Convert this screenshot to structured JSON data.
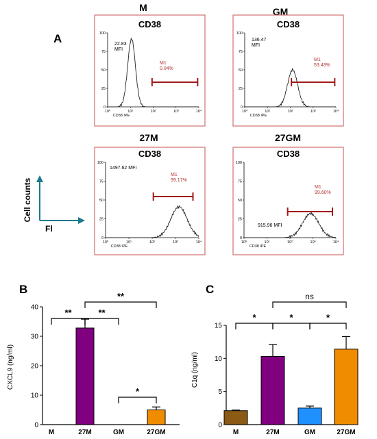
{
  "panel_letters": {
    "a": "A",
    "b": "B",
    "c": "C"
  },
  "flow_axis_key": {
    "y_label": "Cell counts",
    "x_label": "Fl",
    "color": "#1a7a8c"
  },
  "colors": {
    "frame": "#d07070",
    "marker": "#a01818",
    "marker_text": "#b03030",
    "curve": "#222222"
  },
  "chart_data": [
    {
      "type": "histogram",
      "group_label": "M",
      "title": "CD38",
      "mfi_value": "22.83",
      "mfi_unit": "MFI",
      "gate_label": "M1",
      "gate_percent": "0.04%",
      "y_ticks": [
        "0",
        "25",
        "50",
        "75",
        "100"
      ],
      "x_ticks": [
        "10⁰",
        "10¹",
        "10²",
        "10³",
        "10⁴"
      ],
      "x_label": "CD38 IPE",
      "ylim": [
        0,
        100
      ],
      "xlim_log10": [
        0,
        4
      ],
      "peak": {
        "center_log10": 1.05,
        "height": 92,
        "width": 0.17
      },
      "gate_range_log10": [
        1.95,
        3.95
      ]
    },
    {
      "type": "histogram",
      "group_label": "GM",
      "title": "CD38",
      "mfi_value": "136.47",
      "mfi_unit": "MFI",
      "gate_label": "M1",
      "gate_percent": "53.43%",
      "y_ticks": [
        "0",
        "25",
        "50",
        "75",
        "100"
      ],
      "x_ticks": [
        "10⁰",
        "10¹",
        "10²",
        "10³",
        "10⁴"
      ],
      "x_label": "CD38 IPE",
      "ylim": [
        0,
        100
      ],
      "xlim_log10": [
        0,
        4
      ],
      "peak": {
        "center_log10": 2.1,
        "height": 50,
        "width": 0.22
      },
      "gate_range_log10": [
        2.05,
        3.95
      ]
    },
    {
      "type": "histogram",
      "group_label": "27M",
      "title": "CD38",
      "mfi_value": "1497.62",
      "mfi_unit": "MFI",
      "gate_label": "M1",
      "gate_percent": "99.17%",
      "y_ticks": [
        "0",
        "25",
        "50",
        "75",
        "100"
      ],
      "x_ticks": [
        "10⁰",
        "10¹",
        "10²",
        "10³",
        "10⁴"
      ],
      "x_label": "CD38 IPE",
      "ylim": [
        0,
        100
      ],
      "xlim_log10": [
        0,
        4
      ],
      "peak": {
        "center_log10": 3.15,
        "height": 41,
        "width": 0.35
      },
      "gate_range_log10": [
        2.05,
        3.75
      ]
    },
    {
      "type": "histogram",
      "group_label": "27GM",
      "title": "CD38",
      "mfi_value": "915.96",
      "mfi_unit": "MFI",
      "gate_label": "M1",
      "gate_percent": "99.60%",
      "y_ticks": [
        "0",
        "25",
        "50",
        "75",
        "100"
      ],
      "x_ticks": [
        "10⁰",
        "10¹",
        "10²",
        "10³",
        "10⁴"
      ],
      "x_label": "CD38 IPE",
      "ylim": [
        0,
        100
      ],
      "xlim_log10": [
        0,
        4
      ],
      "peak": {
        "center_log10": 2.9,
        "height": 32,
        "width": 0.35
      },
      "gate_range_log10": [
        1.9,
        3.85
      ]
    },
    {
      "type": "bar",
      "ylabel": "CXCL9 (ng/ml)",
      "categories": [
        "M",
        "27M",
        "GM",
        "27GM"
      ],
      "values": [
        0,
        32.8,
        0,
        5.0
      ],
      "errors": [
        0,
        3.0,
        0,
        1.0
      ],
      "colors": [
        "#8b5a14",
        "#800080",
        "#1e90ff",
        "#f08c00"
      ],
      "ylim": [
        0,
        40
      ],
      "yticks": [
        "0",
        "10",
        "20",
        "30",
        "40"
      ],
      "significance": [
        {
          "from": 0,
          "to": 1,
          "label": "**"
        },
        {
          "from": 1,
          "to": 2,
          "label": "**"
        },
        {
          "from": 1,
          "to": 3,
          "label": "**"
        },
        {
          "from": 2,
          "to": 3,
          "label": "*"
        }
      ]
    },
    {
      "type": "bar",
      "ylabel": "C1q (ng/ml)",
      "categories": [
        "M",
        "27M",
        "GM",
        "27GM"
      ],
      "values": [
        2.1,
        10.3,
        2.5,
        11.4
      ],
      "errors": [
        0.1,
        1.8,
        0.3,
        1.9
      ],
      "colors": [
        "#8b5a14",
        "#800080",
        "#1e90ff",
        "#f08c00"
      ],
      "ylim": [
        0,
        15
      ],
      "yticks": [
        "0",
        "5",
        "10",
        "15"
      ],
      "significance": [
        {
          "from": 0,
          "to": 1,
          "label": "*"
        },
        {
          "from": 1,
          "to": 2,
          "label": "*"
        },
        {
          "from": 2,
          "to": 3,
          "label": "*"
        },
        {
          "from": 1,
          "to": 3,
          "label": "ns"
        }
      ]
    }
  ]
}
